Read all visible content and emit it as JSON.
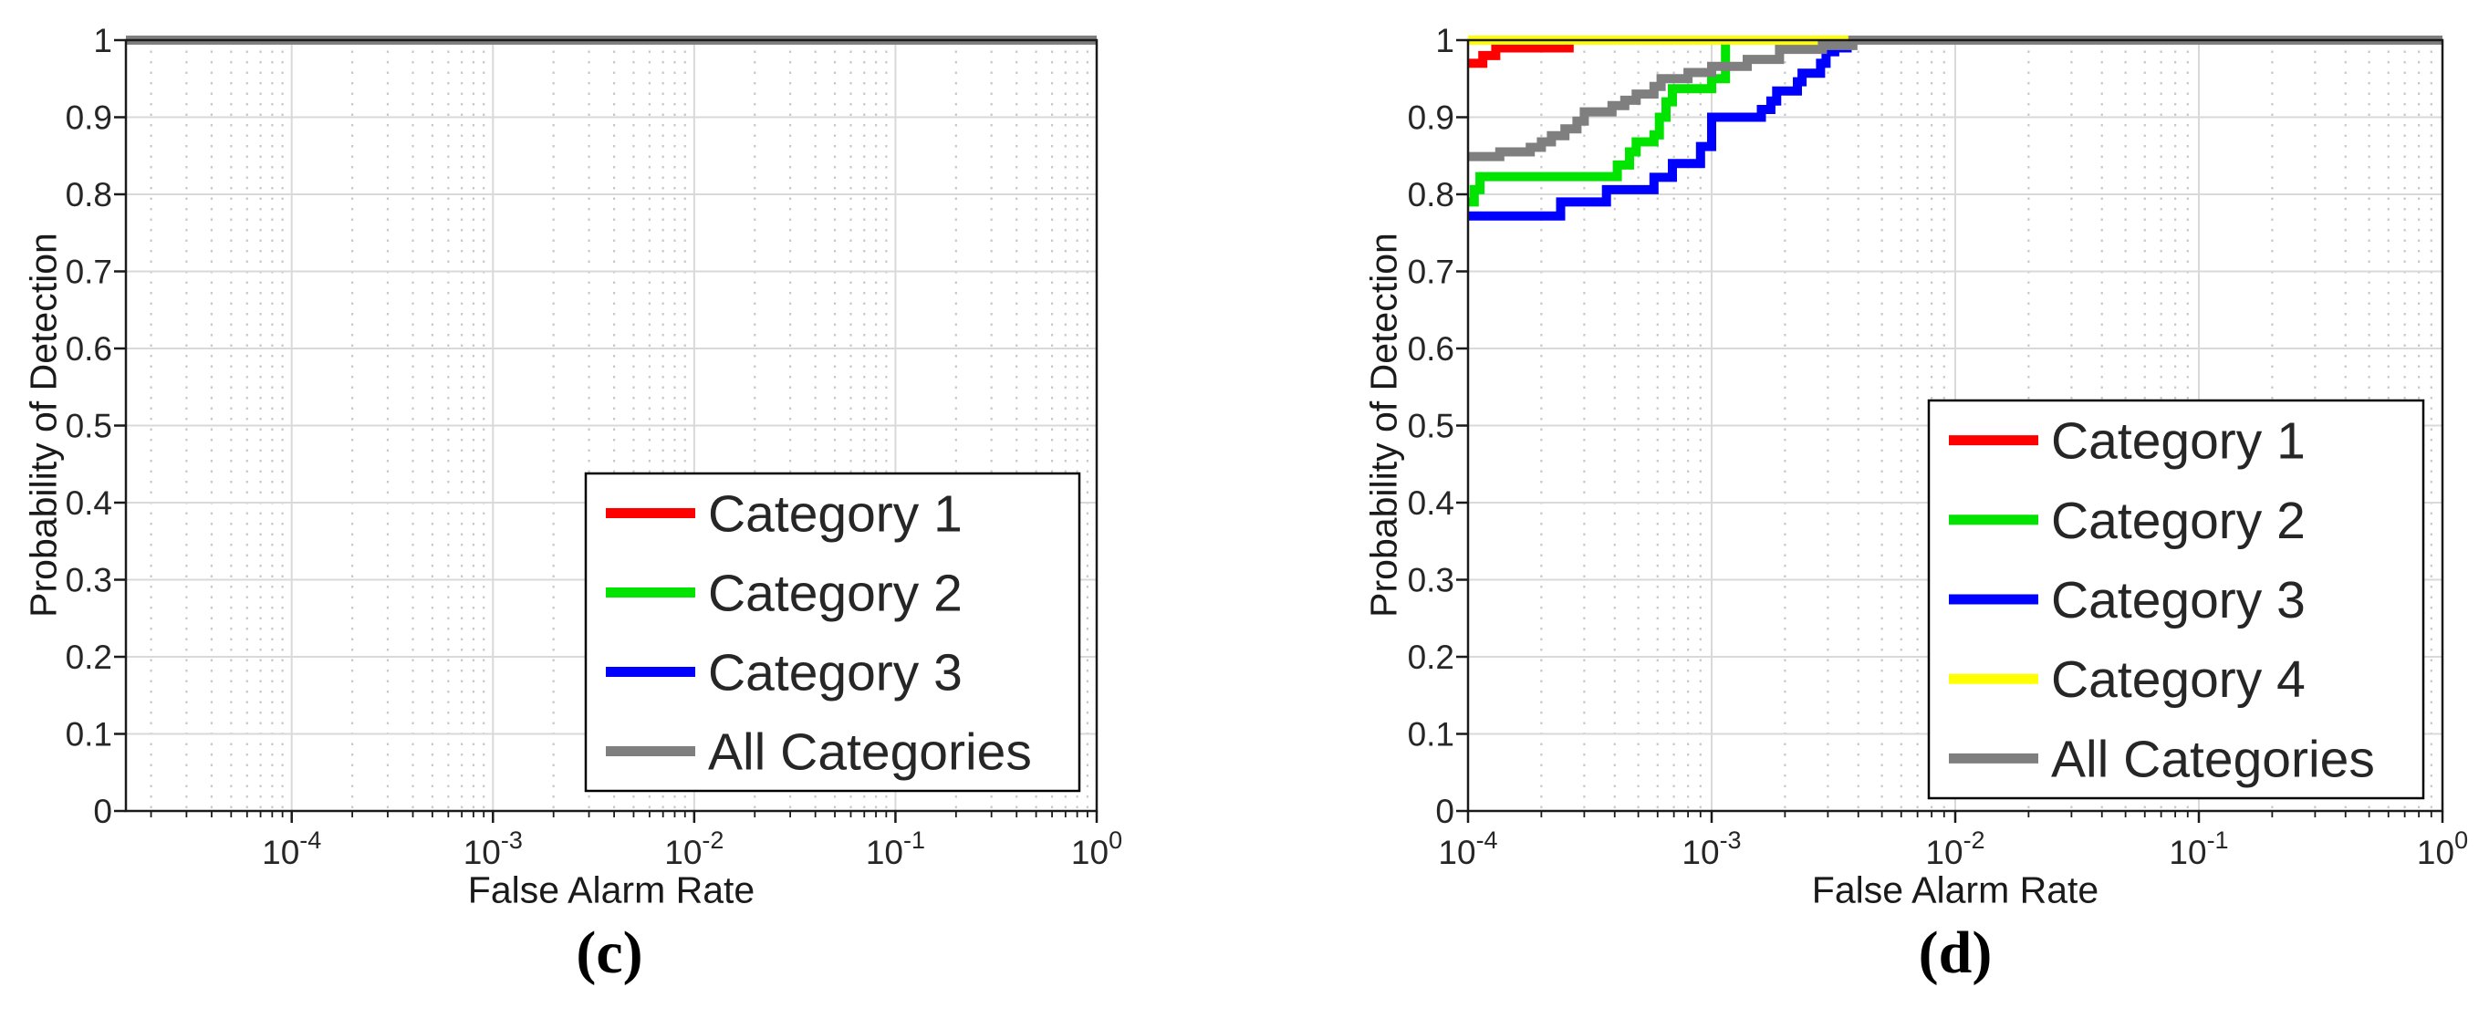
{
  "chart_data": [
    {
      "type": "line",
      "caption": "(c)",
      "xlabel": "False Alarm Rate",
      "ylabel": "Probability of Detection",
      "xscale": "log",
      "xlim": [
        1.5e-05,
        1
      ],
      "ylim": [
        0,
        1
      ],
      "xtick_exponents": [
        -4,
        -3,
        -2,
        -1,
        0
      ],
      "xtick_base": "10",
      "yticks": [
        {
          "v": 0,
          "label": "0"
        },
        {
          "v": 0.1,
          "label": "0.1"
        },
        {
          "v": 0.2,
          "label": "0.2"
        },
        {
          "v": 0.3,
          "label": "0.3"
        },
        {
          "v": 0.4,
          "label": "0.4"
        },
        {
          "v": 0.5,
          "label": "0.5"
        },
        {
          "v": 0.6,
          "label": "0.6"
        },
        {
          "v": 0.7,
          "label": "0.7"
        },
        {
          "v": 0.8,
          "label": "0.8"
        },
        {
          "v": 0.9,
          "label": "0.9"
        },
        {
          "v": 1,
          "label": "1"
        }
      ],
      "grid": {
        "major": true,
        "minor_x_dotted": true
      },
      "legend_position": "southeast",
      "legend": [
        {
          "label": "Category 1",
          "color": "#ff0000"
        },
        {
          "label": "Category 2",
          "color": "#00e400"
        },
        {
          "label": "Category 3",
          "color": "#0000ff"
        },
        {
          "label": "All Categories",
          "color": "#7f7f7f"
        }
      ],
      "series": [
        {
          "name": "Category 1",
          "color": "#ff0000",
          "points": [
            [
              1.5e-05,
              1
            ],
            [
              1,
              1
            ]
          ]
        },
        {
          "name": "Category 2",
          "color": "#00e400",
          "points": [
            [
              1.5e-05,
              1
            ],
            [
              1,
              1
            ]
          ]
        },
        {
          "name": "Category 3",
          "color": "#0000ff",
          "points": [
            [
              1.5e-05,
              1
            ],
            [
              1,
              1
            ]
          ]
        },
        {
          "name": "All Categories",
          "color": "#7f7f7f",
          "points": [
            [
              1.5e-05,
              1
            ],
            [
              1,
              1
            ]
          ]
        }
      ]
    },
    {
      "type": "line",
      "caption": "(d)",
      "xlabel": "False Alarm Rate",
      "ylabel": "Probability of Detection",
      "xscale": "log",
      "xlim": [
        0.0001,
        1
      ],
      "ylim": [
        0,
        1
      ],
      "xtick_exponents": [
        -4,
        -3,
        -2,
        -1,
        0
      ],
      "xtick_base": "10",
      "yticks": [
        {
          "v": 0,
          "label": "0"
        },
        {
          "v": 0.1,
          "label": "0.1"
        },
        {
          "v": 0.2,
          "label": "0.2"
        },
        {
          "v": 0.3,
          "label": "0.3"
        },
        {
          "v": 0.4,
          "label": "0.4"
        },
        {
          "v": 0.5,
          "label": "0.5"
        },
        {
          "v": 0.6,
          "label": "0.6"
        },
        {
          "v": 0.7,
          "label": "0.7"
        },
        {
          "v": 0.8,
          "label": "0.8"
        },
        {
          "v": 0.9,
          "label": "0.9"
        },
        {
          "v": 1,
          "label": "1"
        }
      ],
      "grid": {
        "major": true,
        "minor_x_dotted": true
      },
      "legend_position": "southeast",
      "legend": [
        {
          "label": "Category 1",
          "color": "#ff0000"
        },
        {
          "label": "Category 2",
          "color": "#00e400"
        },
        {
          "label": "Category 3",
          "color": "#0000ff"
        },
        {
          "label": "Category 4",
          "color": "#ffff00"
        },
        {
          "label": "All Categories",
          "color": "#7f7f7f"
        }
      ],
      "series": [
        {
          "name": "Category 1",
          "color": "#ff0000",
          "points": [
            [
              0.0001,
              0.97
            ],
            [
              0.000115,
              0.97
            ],
            [
              0.000115,
              0.98
            ],
            [
              0.00013,
              0.98
            ],
            [
              0.00013,
              0.99
            ],
            [
              0.00026,
              0.99
            ],
            [
              0.00026,
              1
            ],
            [
              1,
              1
            ]
          ]
        },
        {
          "name": "Category 2",
          "color": "#00e400",
          "points": [
            [
              0.0001,
              0.79
            ],
            [
              0.000106,
              0.79
            ],
            [
              0.000106,
              0.806
            ],
            [
              0.000112,
              0.806
            ],
            [
              0.000112,
              0.823
            ],
            [
              0.00041,
              0.823
            ],
            [
              0.00041,
              0.838
            ],
            [
              0.00046,
              0.838
            ],
            [
              0.00046,
              0.855
            ],
            [
              0.00049,
              0.855
            ],
            [
              0.00049,
              0.868
            ],
            [
              0.00058,
              0.868
            ],
            [
              0.00058,
              0.877
            ],
            [
              0.00061,
              0.877
            ],
            [
              0.00061,
              0.9
            ],
            [
              0.00065,
              0.9
            ],
            [
              0.00065,
              0.92
            ],
            [
              0.00069,
              0.92
            ],
            [
              0.00069,
              0.937
            ],
            [
              0.001,
              0.937
            ],
            [
              0.001,
              0.95
            ],
            [
              0.00114,
              0.95
            ],
            [
              0.00114,
              1
            ],
            [
              1,
              1
            ]
          ]
        },
        {
          "name": "Category 3",
          "color": "#0000ff",
          "points": [
            [
              0.0001,
              0.772
            ],
            [
              0.00024,
              0.772
            ],
            [
              0.00024,
              0.79
            ],
            [
              0.00037,
              0.79
            ],
            [
              0.00037,
              0.806
            ],
            [
              0.00058,
              0.806
            ],
            [
              0.00058,
              0.822
            ],
            [
              0.00069,
              0.822
            ],
            [
              0.00069,
              0.84
            ],
            [
              0.0009,
              0.84
            ],
            [
              0.0009,
              0.862
            ],
            [
              0.001,
              0.862
            ],
            [
              0.001,
              0.9
            ],
            [
              0.0016,
              0.9
            ],
            [
              0.0016,
              0.91
            ],
            [
              0.00175,
              0.91
            ],
            [
              0.00175,
              0.921
            ],
            [
              0.00185,
              0.921
            ],
            [
              0.00185,
              0.934
            ],
            [
              0.00225,
              0.934
            ],
            [
              0.00225,
              0.946
            ],
            [
              0.00235,
              0.946
            ],
            [
              0.00235,
              0.957
            ],
            [
              0.0028,
              0.957
            ],
            [
              0.0028,
              0.97
            ],
            [
              0.00295,
              0.97
            ],
            [
              0.00295,
              0.985
            ],
            [
              0.0032,
              0.985
            ],
            [
              0.0032,
              0.99
            ],
            [
              0.0036,
              0.99
            ],
            [
              0.0036,
              1
            ],
            [
              1,
              1
            ]
          ]
        },
        {
          "name": "Category 4",
          "color": "#ffff00",
          "points": [
            [
              0.0001,
              1
            ],
            [
              1,
              1
            ]
          ]
        },
        {
          "name": "All Categories",
          "color": "#7f7f7f",
          "points": [
            [
              0.0001,
              0.849
            ],
            [
              0.000135,
              0.849
            ],
            [
              0.000135,
              0.855
            ],
            [
              0.00018,
              0.855
            ],
            [
              0.00018,
              0.861
            ],
            [
              0.0002,
              0.861
            ],
            [
              0.0002,
              0.868
            ],
            [
              0.00022,
              0.868
            ],
            [
              0.00022,
              0.876
            ],
            [
              0.00025,
              0.876
            ],
            [
              0.00025,
              0.885
            ],
            [
              0.00028,
              0.885
            ],
            [
              0.00028,
              0.895
            ],
            [
              0.0003,
              0.895
            ],
            [
              0.0003,
              0.907
            ],
            [
              0.00039,
              0.907
            ],
            [
              0.00039,
              0.915
            ],
            [
              0.00044,
              0.915
            ],
            [
              0.00044,
              0.922
            ],
            [
              0.00049,
              0.922
            ],
            [
              0.00049,
              0.93
            ],
            [
              0.00058,
              0.93
            ],
            [
              0.00058,
              0.94
            ],
            [
              0.00062,
              0.94
            ],
            [
              0.00062,
              0.95
            ],
            [
              0.0008,
              0.95
            ],
            [
              0.0008,
              0.958
            ],
            [
              0.001,
              0.958
            ],
            [
              0.001,
              0.966
            ],
            [
              0.0014,
              0.966
            ],
            [
              0.0014,
              0.975
            ],
            [
              0.0019,
              0.975
            ],
            [
              0.0019,
              0.988
            ],
            [
              0.00285,
              0.988
            ],
            [
              0.00285,
              0.993
            ],
            [
              0.0038,
              0.993
            ],
            [
              0.0038,
              1
            ],
            [
              1,
              1
            ]
          ]
        }
      ]
    }
  ],
  "style_colors": {
    "axis": "#1a1a1a",
    "tick_text": "#262626",
    "grid_major": "#d9d9d9",
    "grid_minor": "#c8c8c8",
    "legend_border": "#000000",
    "background": "#ffffff"
  }
}
